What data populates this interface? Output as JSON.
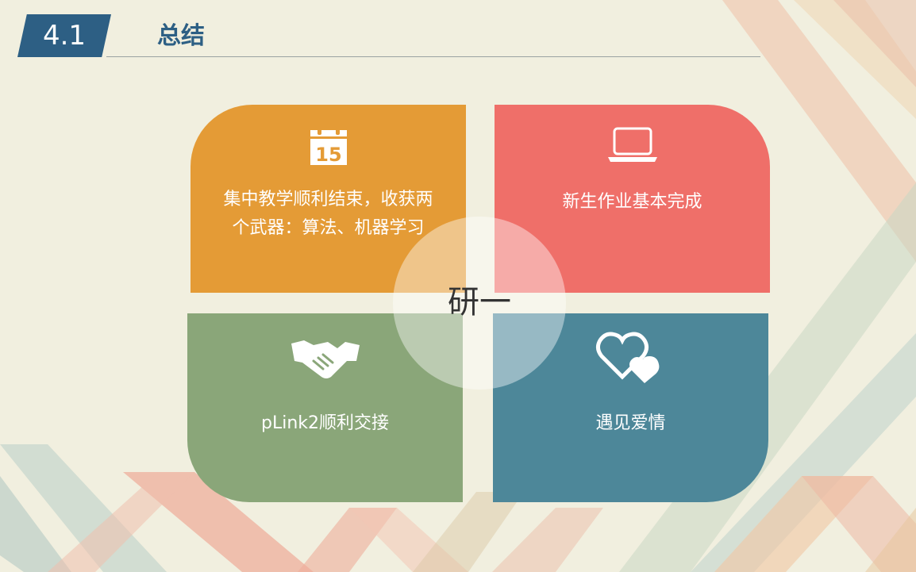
{
  "header": {
    "section_number": "4.1",
    "title": "总结"
  },
  "tiles": [
    {
      "label_line1": "集中教学顺利结束，收获两",
      "label_line2": "个武器：算法、机器学习",
      "icon": "calendar-icon",
      "icon_text": "15",
      "color": "#e49b36"
    },
    {
      "label": "新生作业基本完成",
      "icon": "laptop-icon",
      "color": "#ef6f69"
    },
    {
      "label": "pLink2顺利交接",
      "icon": "handshake-icon",
      "color": "#8aa679"
    },
    {
      "label": "遇见爱情",
      "icon": "hearts-icon",
      "color": "#4d8799"
    }
  ],
  "center": {
    "label": "研一"
  }
}
